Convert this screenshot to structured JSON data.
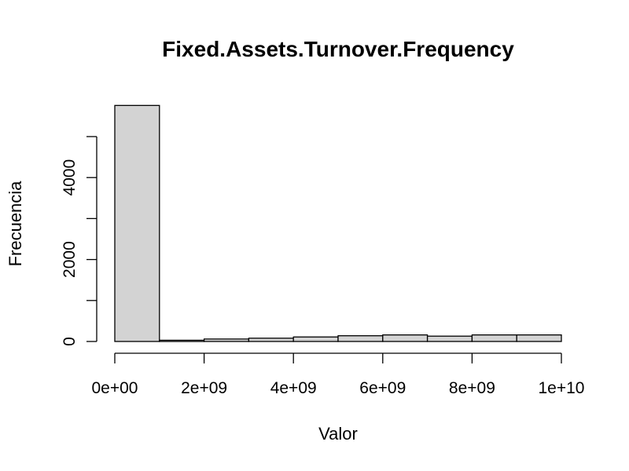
{
  "chart_data": {
    "type": "bar",
    "title": "Fixed.Assets.Turnover.Frequency",
    "xlabel": "Valor",
    "ylabel": "Frecuencia",
    "bin_edges": [
      0,
      1000000000.0,
      2000000000.0,
      3000000000.0,
      4000000000.0,
      5000000000.0,
      6000000000.0,
      7000000000.0,
      8000000000.0,
      9000000000.0,
      10000000000.0
    ],
    "values": [
      5760,
      30,
      60,
      80,
      110,
      140,
      160,
      130,
      160,
      160
    ],
    "xlim": [
      0,
      10000000000.0
    ],
    "ylim": [
      0,
      5000
    ],
    "x_ticks": [
      0,
      2000000000.0,
      4000000000.0,
      6000000000.0,
      8000000000.0,
      10000000000.0
    ],
    "x_tick_labels": [
      "0e+00",
      "2e+09",
      "4e+09",
      "6e+09",
      "8e+09",
      "1e+10"
    ],
    "y_ticks": [
      0,
      1000,
      2000,
      3000,
      4000,
      5000
    ],
    "y_tick_labels": [
      "0",
      "",
      "2000",
      "",
      "4000",
      ""
    ],
    "bar_color": "#d3d3d3",
    "grid": false,
    "legend": "none"
  }
}
